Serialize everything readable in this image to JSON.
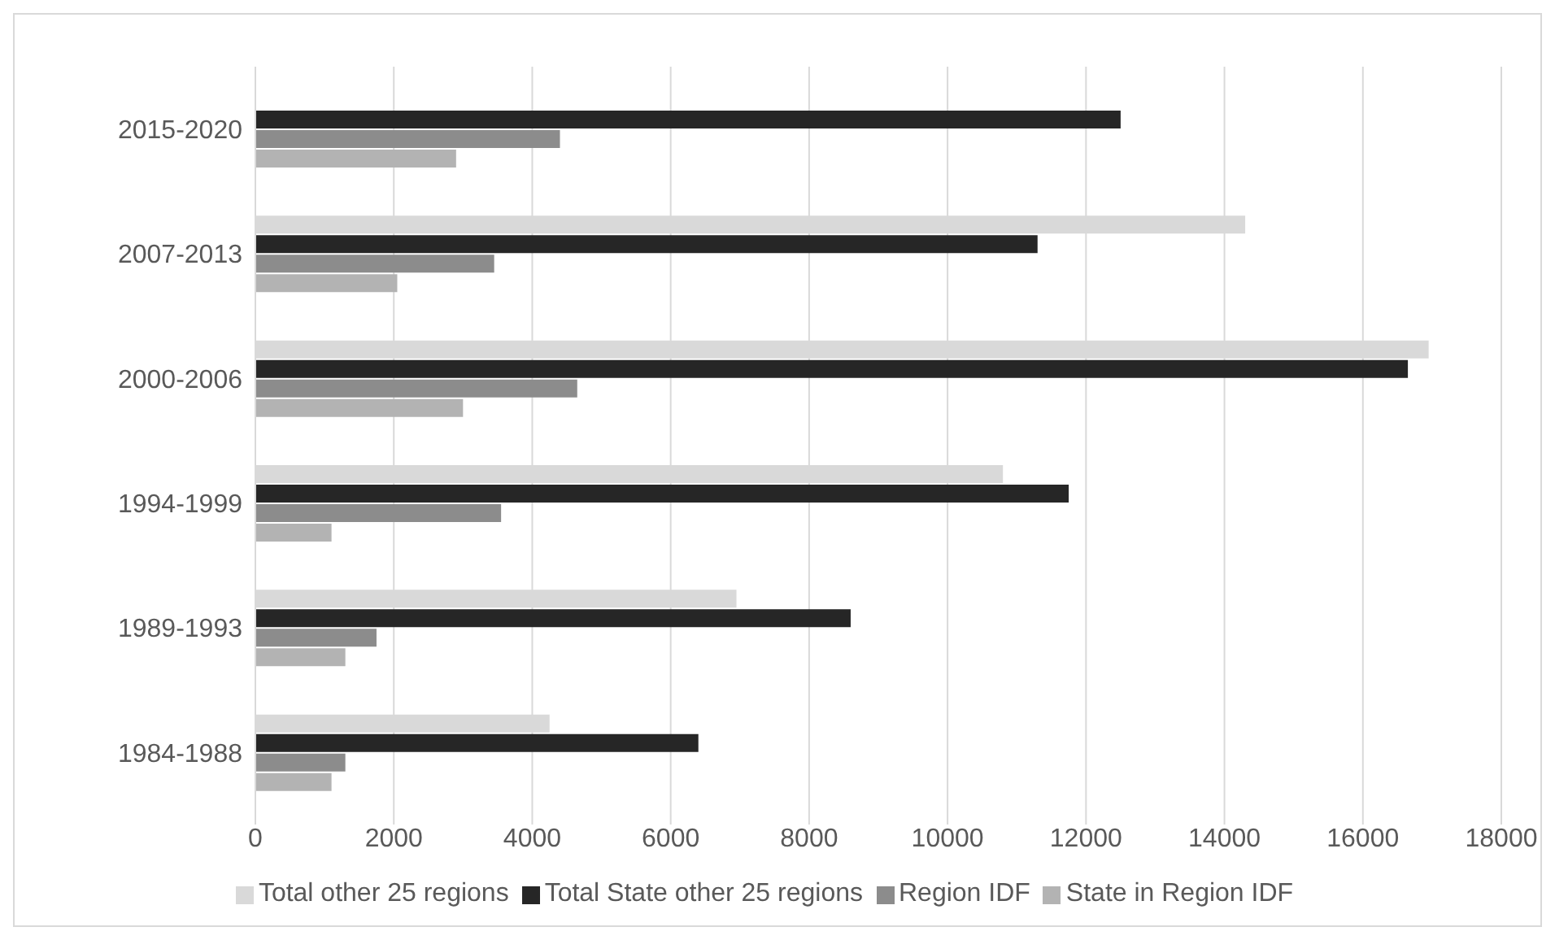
{
  "chart_data": {
    "type": "bar",
    "orientation": "horizontal",
    "categories": [
      "2015-2020",
      "2007-2013",
      "2000-2006",
      "1994-1999",
      "1989-1993",
      "1984-1988"
    ],
    "series": [
      {
        "name": "Total other 25 regions",
        "color": "#d9d9d9",
        "values": [
          null,
          14300,
          16950,
          10800,
          6950,
          4250
        ]
      },
      {
        "name": "Total State other 25 regions",
        "color": "#262626",
        "values": [
          12500,
          11300,
          16650,
          11750,
          8600,
          6400
        ]
      },
      {
        "name": "Region IDF",
        "color": "#8c8c8c",
        "values": [
          4400,
          3450,
          4650,
          3550,
          1750,
          1300
        ]
      },
      {
        "name": "State in Region IDF",
        "color": "#b3b3b3",
        "values": [
          2900,
          2050,
          3000,
          1100,
          1300,
          1100
        ]
      }
    ],
    "xlim": [
      0,
      18000
    ],
    "xticks": [
      0,
      2000,
      4000,
      6000,
      8000,
      10000,
      12000,
      14000,
      16000,
      18000
    ],
    "grid": "x",
    "legend": "bottom"
  }
}
